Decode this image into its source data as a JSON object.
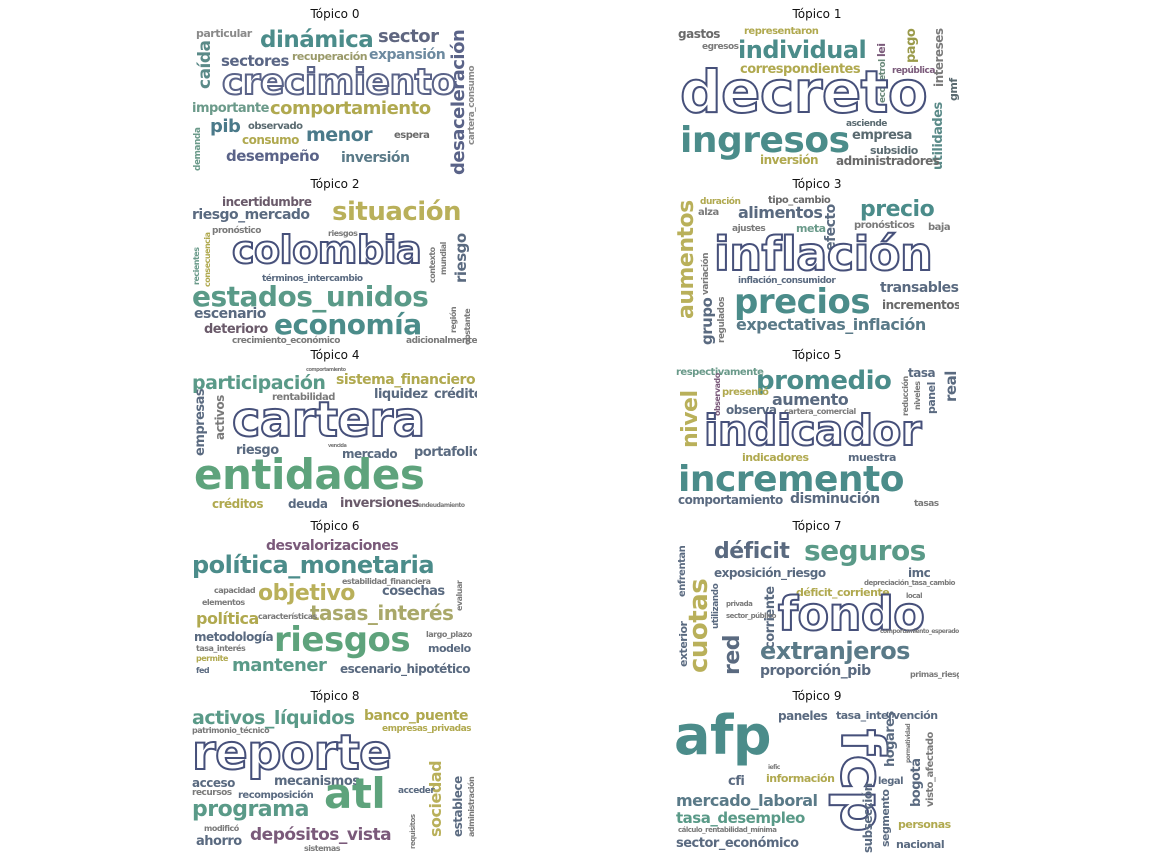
{
  "palette": {
    "slate": "#4a5580",
    "teal": "#4b8c8a",
    "green": "#5ea37c",
    "olive": "#b9b05a",
    "plum": "#7a5a7a",
    "gray": "#6b7388",
    "khaki": "#a9a86a"
  },
  "topics": [
    {
      "title": "Tópico 0",
      "words": [
        "particular",
        "dinámica",
        "sector",
        "sectores",
        "recuperación",
        "expansión",
        "caída",
        "crecimiento",
        "desaceleración",
        "cartera_consumo",
        "importante",
        "comportamiento",
        "pib",
        "observado",
        "consumo",
        "menor",
        "espera",
        "demanda",
        "desempeño",
        "inversión"
      ]
    },
    {
      "title": "Tópico 1",
      "words": [
        "gastos",
        "representaron",
        "egresos",
        "individual",
        "lei",
        "pago",
        "correspondientes",
        "ecopetrol",
        "república",
        "intereses",
        "decreto",
        "gmf",
        "ingresos",
        "asciende",
        "empresa",
        "utilidades",
        "subsidio",
        "inversión",
        "administradores"
      ]
    },
    {
      "title": "Tópico 2",
      "words": [
        "incertidumbre",
        "riesgo_mercado",
        "situación",
        "pronóstico",
        "riesgos",
        "colombia",
        "recientes",
        "consecuencia",
        "mundial",
        "contexto",
        "riesgo",
        "términos_intercambio",
        "estados_unidos",
        "escenario",
        "región",
        "deterioro",
        "economía",
        "obstante",
        "crecimiento_económico",
        "adicionalmente"
      ]
    },
    {
      "title": "Tópico 3",
      "words": [
        "duración",
        "tipo_cambio",
        "alza",
        "alimentos",
        "precio",
        "efecto",
        "aumentos",
        "ajustes",
        "meta",
        "pronósticos",
        "baja",
        "variación",
        "inflación",
        "grupo",
        "regulados",
        "inflación_consumidor",
        "transables",
        "precios",
        "incrementos",
        "expectativas_inflación"
      ]
    },
    {
      "title": "Tópico 4",
      "words": [
        "participación",
        "sistema_financiero",
        "rentabilidad",
        "liquidez",
        "crédito",
        "empresas",
        "activos",
        "cartera",
        "riesgo",
        "mercado",
        "portafolio",
        "entidades",
        "créditos",
        "deuda",
        "inversiones",
        "endeudamiento",
        "comportamiento",
        "vencida"
      ]
    },
    {
      "title": "Tópico 5",
      "words": [
        "respectivamente",
        "promedio",
        "tasa",
        "real",
        "nivel",
        "observado",
        "presentó",
        "aumento",
        "reducción",
        "niveles",
        "panel",
        "observa",
        "cartera_comercial",
        "indicador",
        "indicadores",
        "muestra",
        "incremento",
        "comportamiento",
        "disminución",
        "tasas"
      ]
    },
    {
      "title": "Tópico 6",
      "words": [
        "desvalorizaciones",
        "política_monetaria",
        "estabilidad_financiera",
        "evaluar",
        "capacidad",
        "objetivo",
        "cosechas",
        "elementos",
        "política",
        "tasas_interés",
        "características",
        "riesgos",
        "metodología",
        "largo_plazo",
        "tasa_interés",
        "modelo",
        "permite",
        "mantener",
        "escenario_hipotético",
        "fed"
      ]
    },
    {
      "title": "Tópico 7",
      "words": [
        "enfrentan",
        "déficit",
        "seguros",
        "exposición_riesgo",
        "imc",
        "cuotas",
        "depreciación_tasa_cambio",
        "utilizando",
        "déficit_corriente",
        "local",
        "privada",
        "corriente",
        "fondo",
        "sector_público",
        "red",
        "comportamiento_esperado",
        "exterior",
        "extranjeros",
        "proporción_pib",
        "primas_riesgo"
      ]
    },
    {
      "title": "Tópico 8",
      "words": [
        "activos_líquidos",
        "banco_puente",
        "patrimonio_técnico",
        "empresas_privadas",
        "reporte",
        "acceso",
        "mecanismos",
        "atl",
        "sociedad",
        "recursos",
        "recomposición",
        "acceder",
        "establece",
        "programa",
        "administración",
        "modificó",
        "requisitos",
        "ahorro",
        "depósitos_vista",
        "sistemas"
      ]
    },
    {
      "title": "Tópico 9",
      "words": [
        "paneles",
        "tasa_intervención",
        "afp",
        "fcp",
        "hogares",
        "normatividad",
        "iefic",
        "información",
        "cfi",
        "bogotá",
        "visto_afectado",
        "legal",
        "mercado_laboral",
        "subsección",
        "segmento",
        "tasa_desempleo",
        "personas",
        "cálculo_rentabilidad_mínima",
        "sector_económico",
        "nacional"
      ]
    }
  ]
}
